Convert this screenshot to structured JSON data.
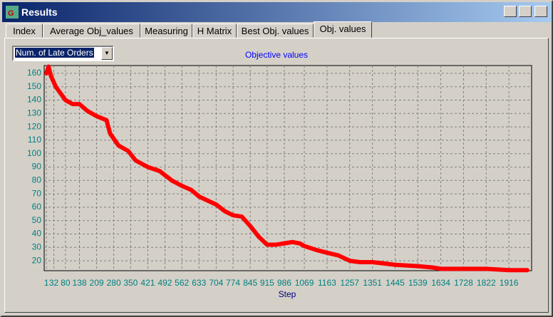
{
  "window": {
    "title": "Results"
  },
  "tabs": [
    "Index",
    "Average Obj_values",
    "Measuring",
    "H Matrix",
    "Best Obj. values",
    "Obj. values"
  ],
  "dropdown": {
    "selected": "Num. of Late Orders"
  },
  "chart_data": {
    "type": "line",
    "title": "Objective values",
    "x_label": "Step",
    "x": [
      1,
      10,
      20,
      40,
      80,
      110,
      138,
      170,
      209,
      250,
      265,
      300,
      340,
      370,
      421,
      470,
      520,
      562,
      600,
      633,
      680,
      704,
      740,
      774,
      810,
      845,
      880,
      915,
      950,
      986,
      1020,
      1050,
      1069,
      1120,
      1163,
      1210,
      1257,
      1300,
      1351,
      1400,
      1445,
      1539,
      1600,
      1634,
      1728,
      1822,
      1916,
      1992
    ],
    "series": [
      {
        "color": "#ff0000",
        "values": [
          160,
          165,
          158,
          150,
          140,
          137,
          137,
          132,
          128,
          125,
          115,
          106,
          102,
          95,
          90,
          87,
          80,
          76,
          73,
          68,
          64,
          62,
          57,
          54,
          53,
          46,
          38,
          32,
          32,
          33,
          34,
          33,
          31,
          28,
          26,
          24,
          20,
          19,
          19,
          18,
          17,
          16,
          15,
          14,
          14,
          14,
          13,
          13
        ]
      }
    ],
    "xlim": [
      -8,
      2010
    ],
    "xticks": [
      1,
      32,
      80,
      138,
      209,
      280,
      350,
      421,
      492,
      562,
      633,
      704,
      774,
      845,
      915,
      986,
      1069,
      1163,
      1257,
      1351,
      1445,
      1539,
      1634,
      1728,
      1822,
      1916
    ],
    "ylim": [
      12.6,
      165.8
    ],
    "yticks": [
      20,
      30,
      40,
      50,
      60,
      70,
      80,
      90,
      100,
      110,
      120,
      130,
      140,
      150,
      160
    ],
    "grid": true
  }
}
